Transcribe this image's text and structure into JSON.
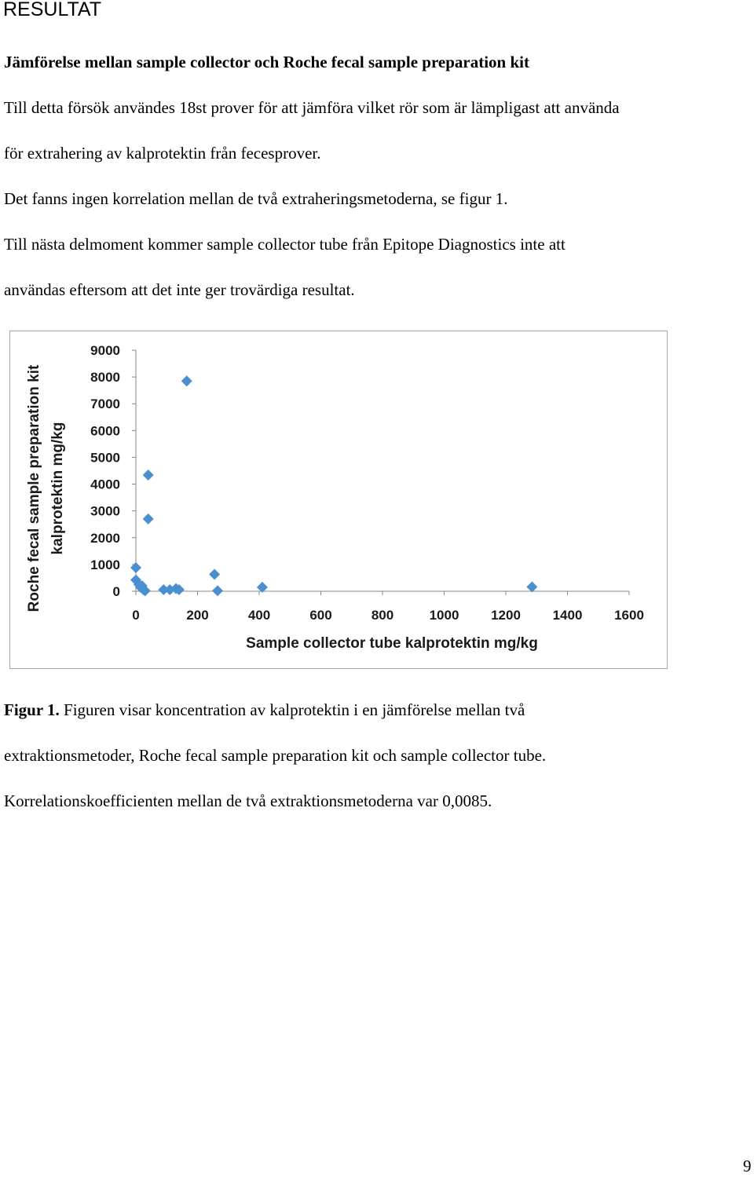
{
  "header": {
    "title": "RESULTAT"
  },
  "section": {
    "heading": "Jämförelse mellan sample collector och Roche fecal sample preparation kit",
    "paragraphs": [
      [
        "Till detta försök användes 18st prover för att jämföra vilket rör som är lämpligast att använda",
        "för extrahering av kalprotektin från fecesprover."
      ],
      [
        "Det fanns ingen korrelation mellan de två extraheringsmetoderna, se figur 1."
      ],
      [
        "Till nästa delmoment kommer sample collector tube från Epitope Diagnostics inte att",
        "användas eftersom att det inte ger trovärdiga resultat."
      ]
    ]
  },
  "chart_data": {
    "type": "scatter",
    "xlabel": "Sample collector tube kalprotektin mg/kg",
    "ylabel": [
      "Roche fecal sample preparation kit",
      "kalprotektin mg/kg"
    ],
    "x": [
      0,
      0,
      10,
      15,
      20,
      25,
      30,
      40,
      40,
      165,
      90,
      110,
      130,
      140,
      255,
      265,
      410,
      1285
    ],
    "values": [
      880,
      420,
      250,
      150,
      200,
      50,
      20,
      4340,
      2700,
      7850,
      60,
      60,
      100,
      60,
      630,
      20,
      150,
      160
    ],
    "color": "#4a90d0",
    "xlim": [
      0,
      1600
    ],
    "xticks": [
      0,
      200,
      400,
      600,
      800,
      1000,
      1200,
      1400,
      1600
    ],
    "ylim": [
      0,
      9000
    ],
    "yticks": [
      0,
      1000,
      2000,
      3000,
      4000,
      5000,
      6000,
      7000,
      8000,
      9000
    ],
    "grid": false
  },
  "caption": {
    "label": "Figur 1.",
    "lines": [
      "Figuren visar koncentration av kalprotektin i en jämförelse mellan två",
      "extraktionsmetoder, Roche fecal sample preparation kit och sample collector tube.",
      "Korrelationskoefficienten mellan de två extraktionsmetoderna var 0,0085."
    ]
  },
  "footer": {
    "page_number": "9"
  }
}
